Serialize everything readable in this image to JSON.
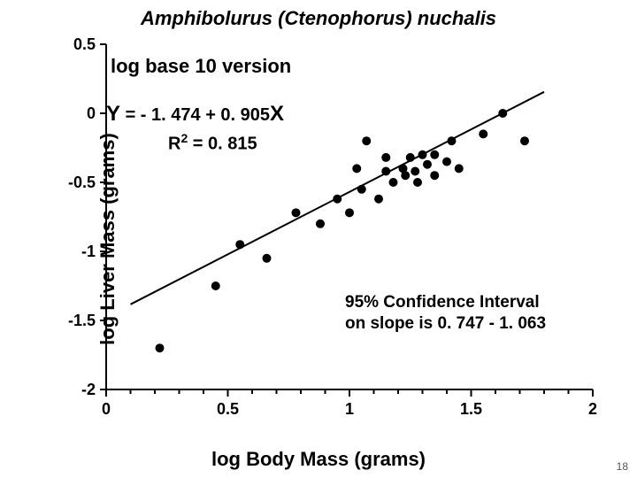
{
  "chart": {
    "type": "scatter",
    "title": "Amphibolurus (Ctenophorus) nuchalis",
    "xlabel": "log Body Mass (grams)",
    "ylabel": "log Liver Mass (grams)",
    "xlim": [
      0,
      2
    ],
    "ylim": [
      -2,
      0.5
    ],
    "xticks": [
      0,
      0.5,
      1,
      1.5,
      2
    ],
    "yticks": [
      -2,
      -1.5,
      -1,
      -0.5,
      0,
      0.5
    ],
    "xtick_labels": [
      "0",
      "0.5",
      "1",
      "1.5",
      "2"
    ],
    "ytick_labels": [
      "-2",
      "-1.5",
      "-1",
      "-0.5",
      "0",
      "0.5"
    ],
    "xtick_minor_step": 0.1,
    "point_radius": 5,
    "point_color": "#000000",
    "line_color": "#000000",
    "background": "#ffffff",
    "label_fontsize": 22,
    "tick_fontsize": 18,
    "data": [
      [
        0.22,
        -1.7
      ],
      [
        0.45,
        -1.25
      ],
      [
        0.55,
        -0.95
      ],
      [
        0.66,
        -1.05
      ],
      [
        0.78,
        -0.72
      ],
      [
        0.88,
        -0.8
      ],
      [
        0.95,
        -0.62
      ],
      [
        1.0,
        -0.72
      ],
      [
        1.03,
        -0.4
      ],
      [
        1.05,
        -0.55
      ],
      [
        1.07,
        -0.2
      ],
      [
        1.12,
        -0.62
      ],
      [
        1.15,
        -0.42
      ],
      [
        1.15,
        -0.32
      ],
      [
        1.18,
        -0.5
      ],
      [
        1.22,
        -0.4
      ],
      [
        1.23,
        -0.45
      ],
      [
        1.25,
        -0.32
      ],
      [
        1.27,
        -0.42
      ],
      [
        1.28,
        -0.5
      ],
      [
        1.3,
        -0.3
      ],
      [
        1.32,
        -0.37
      ],
      [
        1.35,
        -0.45
      ],
      [
        1.35,
        -0.3
      ],
      [
        1.4,
        -0.35
      ],
      [
        1.42,
        -0.2
      ],
      [
        1.45,
        -0.4
      ],
      [
        1.55,
        -0.15
      ],
      [
        1.63,
        0.0
      ],
      [
        1.72,
        -0.2
      ]
    ],
    "regression": {
      "intercept": -1.474,
      "slope": 0.905,
      "r2": 0.815,
      "x_start": 0.1,
      "x_end": 1.8
    },
    "annotations": {
      "subtitle": "log base 10 version",
      "equation_prefix_big1": "Y",
      "equation_mid": " = - 1. 474 + 0. 905",
      "equation_prefix_big2": "X",
      "r2_label": "R",
      "r2_sup": "2",
      "r2_rest": " = 0. 815",
      "ci_line1": "95% Confidence Interval",
      "ci_line2": "on slope is 0. 747 - 1. 063"
    }
  },
  "page_number": "18"
}
